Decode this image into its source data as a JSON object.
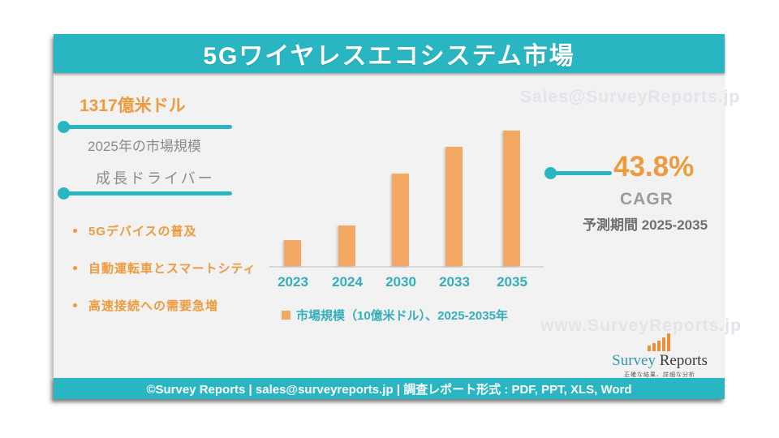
{
  "colors": {
    "teal": "#2ab5c3",
    "teal_text": "#35aebc",
    "orange_text": "#ee9a3d",
    "bar_orange": "#f3a963",
    "gray_text": "#8b8b8b",
    "card_bg": "#f2f2f2",
    "watermark": "#e1e4ea"
  },
  "header": {
    "title": "5Gワイヤレスエコシステム市場"
  },
  "left_panel": {
    "market_value": "1317億米ドル",
    "market_value_caption": "2025年の市場規模",
    "drivers_heading": "成長ドライバー",
    "drivers": [
      "5Gデバイスの普及",
      "自動運転車とスマートシティ",
      "高速接続への需要急増"
    ]
  },
  "right_panel": {
    "cagr_value": "43.8%",
    "cagr_label": "CAGR",
    "forecast_period": "予測期間 2025-2035"
  },
  "chart_data": {
    "type": "bar",
    "categories": [
      "2023",
      "2024",
      "2030",
      "2033",
      "2035"
    ],
    "values_pct_of_max": [
      19,
      30,
      68,
      88,
      100
    ],
    "value_axis_note": "y-axis not shown; bar heights estimated as percent of tallest (2035) bar",
    "legend": "市場規模（10億米ドル）、2025-2035年",
    "xlabel": "",
    "ylabel": "",
    "grid": false,
    "bar_color": "#f3a963",
    "annotations": {
      "market_size_2025": "1317億米ドル",
      "cagr_2025_2035": "43.8%"
    }
  },
  "watermarks": {
    "top": "Sales@SurveyReports.jp",
    "bottom": "www.SurveyReports.jp"
  },
  "logo": {
    "name_teal": "Survey",
    "name_dark": "Reports",
    "tagline": "正確な結果、詳細な分析"
  },
  "footer": {
    "text": "©Survey Reports | sales@surveyreports.jp |  調査レポート形式 : PDF, PPT, XLS, Word"
  }
}
